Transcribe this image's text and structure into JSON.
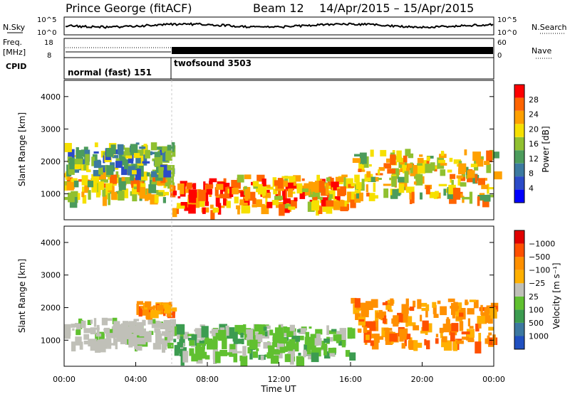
{
  "header": {
    "station": "Prince George (fitACF)",
    "beam": "Beam 12",
    "dates": "14/Apr/2015 – 15/Apr/2015"
  },
  "panels": {
    "nsky": {
      "label": "N.Sky",
      "ticks_left": [
        "10^5",
        "10^0"
      ],
      "ticks_right": [
        "10^5",
        "10^0"
      ],
      "right_label": "N.Search"
    },
    "freq": {
      "label_line1": "Freq.",
      "label_line2": "[MHz]",
      "ticks_left": [
        "18",
        "8"
      ],
      "ticks_right": [
        "60",
        "0"
      ],
      "right_label": "Nave"
    },
    "cpid": {
      "label": "CPID",
      "segments": [
        {
          "name": "normal (fast) 151",
          "start": 0,
          "end": 6
        },
        {
          "name": "twofsound 3503",
          "start": 6,
          "end": 24
        }
      ]
    }
  },
  "colors": {
    "power": [
      "#0000ff",
      "#2b4bc8",
      "#3c7aa0",
      "#4c9c5c",
      "#90c030",
      "#f6e000",
      "#ffa000",
      "#ff6400",
      "#ff0000"
    ],
    "velocity": [
      "#e00000",
      "#ff5000",
      "#ff9000",
      "#ffb000",
      "#c0c0b8",
      "#60c030",
      "#3c9c50",
      "#3c78a0",
      "#2050c0"
    ]
  },
  "chart_data": [
    {
      "type": "heatmap",
      "title": "",
      "ylabel": "Slant Range [km]",
      "xlabel": "",
      "xlim": [
        0,
        24
      ],
      "ylim": [
        200,
        4500
      ],
      "yticks": [
        "1000",
        "2000",
        "3000",
        "4000"
      ],
      "colorbar": {
        "label": "Power [dB]",
        "ticks": [
          "4",
          "8",
          "12",
          "16",
          "20",
          "24",
          "28"
        ],
        "range": [
          0,
          30
        ]
      },
      "features": [
        {
          "t0": 0,
          "t1": 6,
          "r0": 900,
          "r1": 1700,
          "value": 20
        },
        {
          "t0": 0,
          "t1": 6,
          "r0": 1700,
          "r1": 2600,
          "value": 10
        },
        {
          "t0": 6,
          "t1": 9,
          "r0": 500,
          "r1": 1500,
          "value": 26
        },
        {
          "t0": 9,
          "t1": 16,
          "r0": 600,
          "r1": 1600,
          "value": 24
        },
        {
          "t0": 16,
          "t1": 24,
          "r0": 900,
          "r1": 2400,
          "value": 18
        }
      ]
    },
    {
      "type": "heatmap",
      "title": "",
      "ylabel": "Slant Range [km]",
      "xlabel": "Time UT",
      "xlim": [
        0,
        24
      ],
      "ylim": [
        200,
        4500
      ],
      "yticks": [
        "1000",
        "2000",
        "3000",
        "4000"
      ],
      "xticks": [
        "00:00",
        "04:00",
        "08:00",
        "12:00",
        "16:00",
        "20:00",
        "00:00"
      ],
      "colorbar": {
        "label": "Velocity [m s⁻¹]",
        "ticks": [
          "1000",
          "500",
          "100",
          "25",
          "−25",
          "−100",
          "−500",
          "−1000"
        ],
        "range": [
          -1000,
          1000
        ]
      },
      "features": [
        {
          "t0": 0,
          "t1": 6,
          "r0": 900,
          "r1": 1700,
          "value": 0
        },
        {
          "t0": 4,
          "t1": 6,
          "r0": 1900,
          "r1": 2200,
          "value": -100
        },
        {
          "t0": 6,
          "t1": 16,
          "r0": 500,
          "r1": 1500,
          "value": 100
        },
        {
          "t0": 16,
          "t1": 24,
          "r0": 900,
          "r1": 2300,
          "value": -300
        }
      ]
    }
  ]
}
